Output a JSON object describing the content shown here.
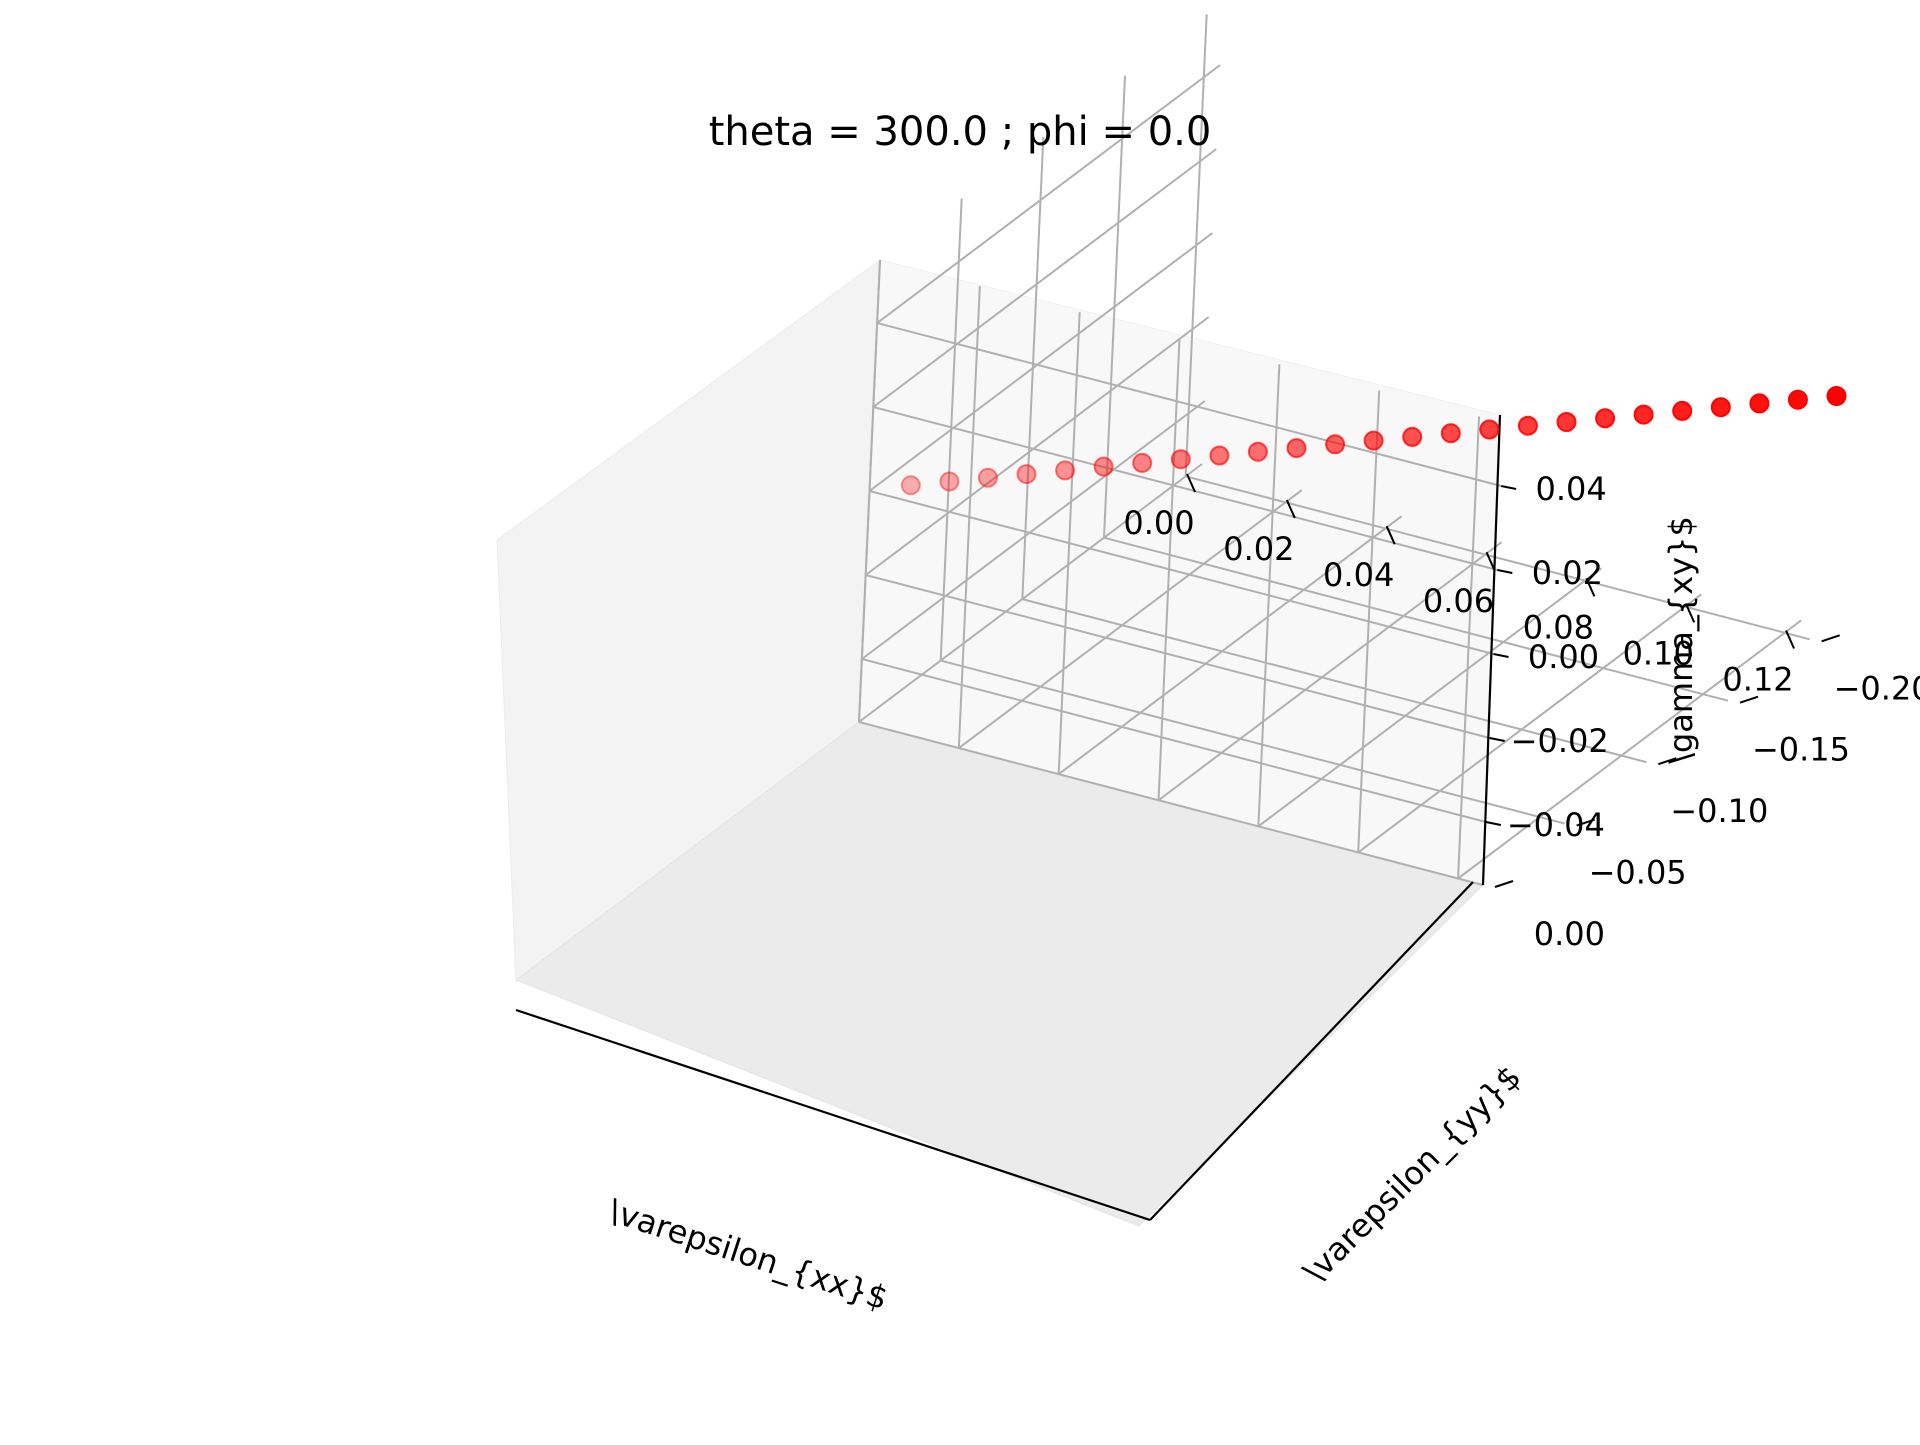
{
  "chart_data": {
    "type": "scatter",
    "projection": "3d",
    "title": "theta = 300.0 ; phi = 0.0",
    "xlabel": "\\varepsilon_{xx}$",
    "ylabel": "\\varepsilon_{yy}$",
    "zlabel": "\\gamma_{xy}$",
    "xlim": [
      0.0,
      0.125
    ],
    "ylim": [
      -0.21,
      0.0
    ],
    "zlim": [
      -0.055,
      0.055
    ],
    "xticks": [
      "0.00",
      "0.02",
      "0.04",
      "0.06",
      "0.08",
      "0.10",
      "0.12"
    ],
    "yticks": [
      "0.00",
      "−0.05",
      "−0.10",
      "−0.15",
      "−0.20"
    ],
    "zticks": [
      "0.04",
      "0.02",
      "0.00",
      "−0.02",
      "−0.04"
    ],
    "grid": true,
    "marker_color": "#ff0000",
    "series": [
      {
        "n_points": 25,
        "x_range": [
          0.005,
          0.125
        ],
        "y_range": [
          -0.01,
          -0.21
        ],
        "z": 0.0
      }
    ]
  }
}
